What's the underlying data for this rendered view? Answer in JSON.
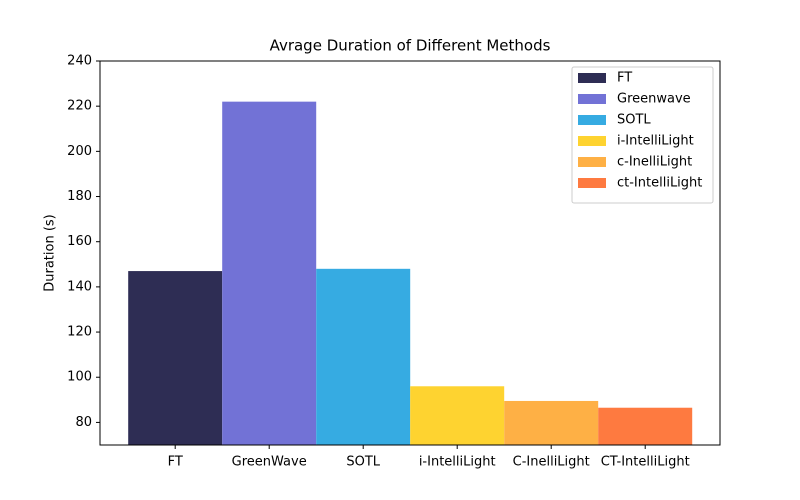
{
  "chart_data": {
    "type": "bar",
    "title": "Avrage Duration of Different Methods",
    "y_label": "Duration (s)",
    "categories": [
      "FT",
      "GreenWave",
      "SOTL",
      "i-IntelliLight",
      "C-InelliLight",
      "CT-IntelliLight"
    ],
    "series": [
      {
        "name": "FT",
        "color": "#2e2d54",
        "values": [
          147,
          null,
          null,
          null,
          null,
          null
        ]
      },
      {
        "name": "Greenwave",
        "color": "#7272d6",
        "values": [
          null,
          222,
          null,
          null,
          null,
          null
        ]
      },
      {
        "name": "SOTL",
        "color": "#36abe2",
        "values": [
          null,
          null,
          148,
          null,
          null,
          null
        ]
      },
      {
        "name": "i-IntelliLight",
        "color": "#fed330",
        "values": [
          null,
          null,
          null,
          96,
          null,
          null
        ]
      },
      {
        "name": "c-InelliLight",
        "color": "#feb045",
        "values": [
          null,
          null,
          null,
          null,
          89.5,
          null
        ]
      },
      {
        "name": "ct-IntelliLight",
        "color": "#fe7a40",
        "values": [
          null,
          null,
          null,
          null,
          null,
          86.5
        ]
      }
    ],
    "ylim": [
      70,
      240
    ],
    "yticks": [
      80,
      100,
      120,
      140,
      160,
      180,
      200,
      220,
      240
    ],
    "legend": "upper right"
  }
}
